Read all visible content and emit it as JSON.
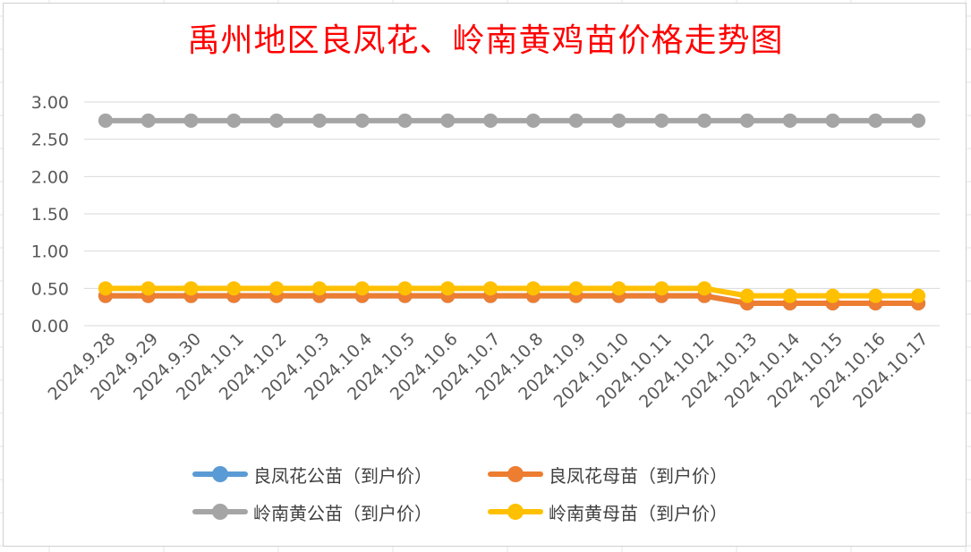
{
  "chart_data": {
    "type": "line",
    "title": "禹州地区良凤花、岭南黄鸡苗价格走势图",
    "categories": [
      "2024.9.28",
      "2024.9.29",
      "2024.9.30",
      "2024.10.1",
      "2024.10.2",
      "2024.10.3",
      "2024.10.4",
      "2024.10.5",
      "2024.10.6",
      "2024.10.7",
      "2024.10.8",
      "2024.10.9",
      "2024.10.10",
      "2024.10.11",
      "2024.10.12",
      "2024.10.13",
      "2024.10.14",
      "2024.10.15",
      "2024.10.16",
      "2024.10.17"
    ],
    "ylim": [
      0,
      3
    ],
    "yticks": [
      "0.00",
      "0.50",
      "1.00",
      "1.50",
      "2.00",
      "2.50",
      "3.00"
    ],
    "grid": true,
    "legend_position": "bottom",
    "series": [
      {
        "name": "良凤花公苗（到户价）",
        "color": "#5b9bd5",
        "values": [
          0.4,
          0.4,
          0.4,
          0.4,
          0.4,
          0.4,
          0.4,
          0.4,
          0.4,
          0.4,
          0.4,
          0.4,
          0.4,
          0.4,
          0.4,
          0.3,
          0.3,
          0.3,
          0.3,
          0.3
        ]
      },
      {
        "name": "良凤花母苗（到户价）",
        "color": "#ed7d31",
        "values": [
          0.4,
          0.4,
          0.4,
          0.4,
          0.4,
          0.4,
          0.4,
          0.4,
          0.4,
          0.4,
          0.4,
          0.4,
          0.4,
          0.4,
          0.4,
          0.3,
          0.3,
          0.3,
          0.3,
          0.3
        ]
      },
      {
        "name": "岭南黄公苗（到户价）",
        "color": "#a5a5a5",
        "values": [
          2.75,
          2.75,
          2.75,
          2.75,
          2.75,
          2.75,
          2.75,
          2.75,
          2.75,
          2.75,
          2.75,
          2.75,
          2.75,
          2.75,
          2.75,
          2.75,
          2.75,
          2.75,
          2.75,
          2.75
        ]
      },
      {
        "name": "岭南黄母苗（到户价）",
        "color": "#ffc000",
        "values": [
          0.5,
          0.5,
          0.5,
          0.5,
          0.5,
          0.5,
          0.5,
          0.5,
          0.5,
          0.5,
          0.5,
          0.5,
          0.5,
          0.5,
          0.5,
          0.4,
          0.4,
          0.4,
          0.4,
          0.4
        ]
      }
    ]
  }
}
